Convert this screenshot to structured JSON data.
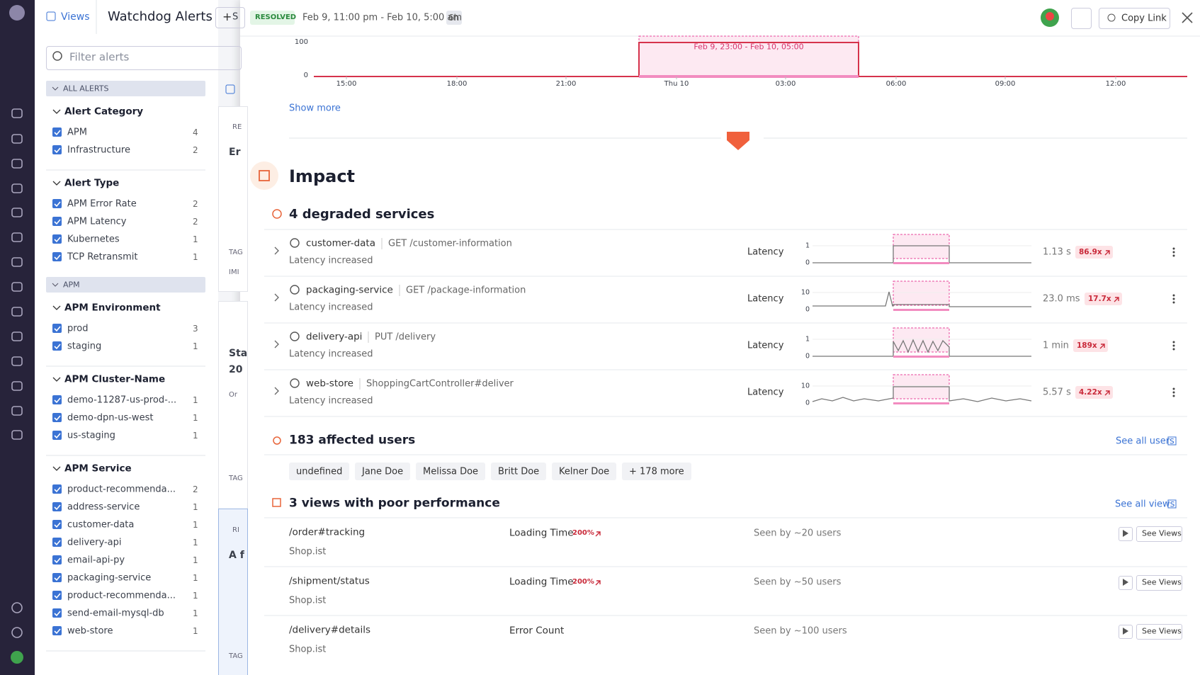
{
  "header": {
    "views": "Views",
    "title": "Watchdog Alerts",
    "new_button": "S",
    "filter_placeholder": "Filter alerts"
  },
  "facets": [
    {
      "bar": "ALL ALERTS"
    },
    {
      "title": "Alert Category",
      "items": [
        {
          "label": "APM",
          "count": 4
        },
        {
          "label": "Infrastructure",
          "count": 2
        }
      ]
    },
    {
      "title": "Alert Type",
      "items": [
        {
          "label": "APM Error Rate",
          "count": 2
        },
        {
          "label": "APM Latency",
          "count": 2
        },
        {
          "label": "Kubernetes",
          "count": 1
        },
        {
          "label": "TCP Retransmit",
          "count": 1
        }
      ]
    },
    {
      "bar": "APM"
    },
    {
      "title": "APM Environment",
      "items": [
        {
          "label": "prod",
          "count": 3
        },
        {
          "label": "staging",
          "count": 1
        }
      ]
    },
    {
      "title": "APM Cluster-Name",
      "items": [
        {
          "label": "demo-11287-us-prod-...",
          "count": 1
        },
        {
          "label": "demo-dpn-us-west",
          "count": 1
        },
        {
          "label": "us-staging",
          "count": 1
        }
      ]
    },
    {
      "title": "APM Service",
      "items": [
        {
          "label": "product-recommenda...",
          "count": 2
        },
        {
          "label": "address-service",
          "count": 1
        },
        {
          "label": "customer-data",
          "count": 1
        },
        {
          "label": "delivery-api",
          "count": 1
        },
        {
          "label": "email-api-py",
          "count": 1
        },
        {
          "label": "packaging-service",
          "count": 1
        },
        {
          "label": "product-recommenda...",
          "count": 1
        },
        {
          "label": "send-email-mysql-db",
          "count": 1
        },
        {
          "label": "web-store",
          "count": 1
        }
      ]
    }
  ],
  "background_fragments": [
    "RE",
    "Er",
    "TAG",
    "IMI",
    "Sta",
    "20",
    "Or",
    "TAG",
    "RI",
    "A f",
    "TAG"
  ],
  "panel": {
    "status": "RESOLVED",
    "time_range": "Feb 9, 11:00 pm - Feb 10, 5:00 am",
    "duration": "6h",
    "copy_link": "Copy Link",
    "chart": {
      "yticks": [
        100,
        0
      ],
      "xticks": [
        "15:00",
        "18:00",
        "21:00",
        "Thu 10",
        "03:00",
        "06:00",
        "09:00",
        "12:00"
      ],
      "annotation": "Feb 9, 23:00 - Feb 10, 05:00"
    },
    "show_more": "Show more",
    "impact_title": "Impact",
    "services_title": "4 degraded services",
    "services": [
      {
        "name": "customer-data",
        "endpoint": "GET /customer-information",
        "status": "Latency increased",
        "metric": "Latency",
        "yticks": [
          1,
          0
        ],
        "value": "1.13 s",
        "ratio": "86.9x"
      },
      {
        "name": "packaging-service",
        "endpoint": "GET /package-information",
        "status": "Latency increased",
        "metric": "Latency",
        "yticks": [
          10,
          0
        ],
        "value": "23.0 ms",
        "ratio": "17.7x"
      },
      {
        "name": "delivery-api",
        "endpoint": "PUT /delivery",
        "status": "Latency increased",
        "metric": "Latency",
        "yticks": [
          1,
          0
        ],
        "value": "1 min",
        "ratio": "189x"
      },
      {
        "name": "web-store",
        "endpoint": "ShoppingCartController#deliver",
        "status": "Latency increased",
        "metric": "Latency",
        "yticks": [
          10,
          0
        ],
        "value": "5.57 s",
        "ratio": "4.22x"
      }
    ],
    "users_title": "183 affected users",
    "see_all_users": "See all users",
    "users": [
      "undefined",
      "Jane Doe",
      "Melissa Doe",
      "Britt Doe",
      "Kelner Doe",
      "+ 178 more"
    ],
    "views_title": "3 views with poor performance",
    "see_all_views": "See all views",
    "views": [
      {
        "path": "/order#tracking",
        "app": "Shop.ist",
        "metric": "Loading Time",
        "change": "200%",
        "seen": "Seen by ~20 users",
        "button": "See Views"
      },
      {
        "path": "/shipment/status",
        "app": "Shop.ist",
        "metric": "Loading Time",
        "change": "200%",
        "seen": "Seen by ~50 users",
        "button": "See Views"
      },
      {
        "path": "/delivery#details",
        "app": "Shop.ist",
        "metric": "Error Count",
        "seen": "Seen by ~100 users",
        "button": "See Views"
      }
    ]
  }
}
